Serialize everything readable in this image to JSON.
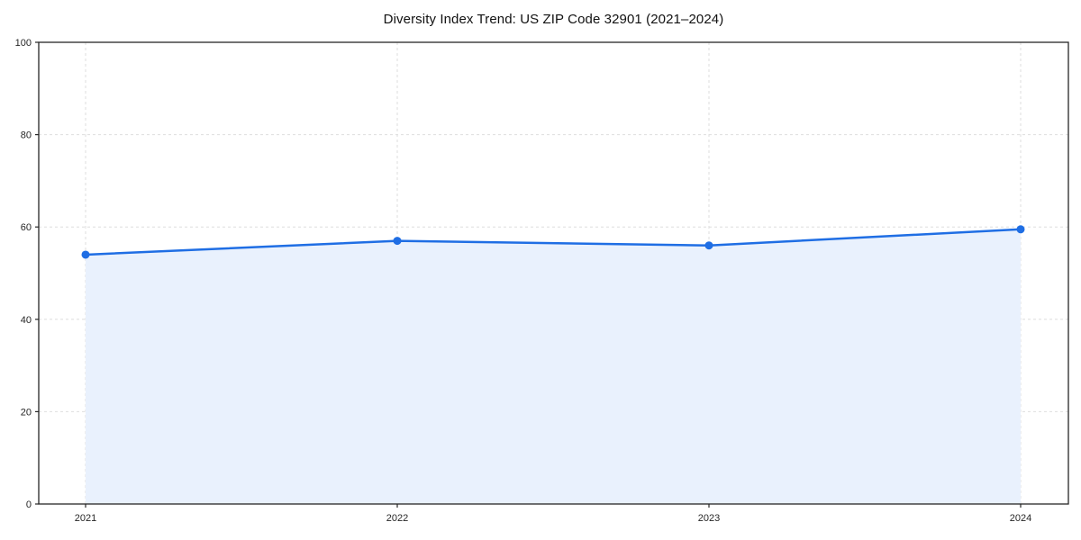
{
  "title": "Diversity Index Trend: US ZIP Code 32901 (2021–2024)",
  "chart_data": {
    "type": "area",
    "title": "Diversity Index Trend: US ZIP Code 32901 (2021–2024)",
    "categories": [
      "2021",
      "2022",
      "2023",
      "2024"
    ],
    "series": [
      {
        "name": "Diversity Index",
        "values": [
          54,
          57,
          56,
          59.5
        ]
      }
    ],
    "xlabel": "",
    "ylabel": "",
    "ylim": [
      0,
      100
    ],
    "yticks": [
      0,
      20,
      40,
      60,
      80,
      100
    ],
    "grid": "dashed",
    "legend": false,
    "colors": {
      "line": "#1f6ee4",
      "marker": "#1f6ee4",
      "area_fill": "#e9f1fd",
      "gridline": "#dedede",
      "axis": "#262626",
      "tick_label": "#262626",
      "title_text": "#111111"
    }
  }
}
